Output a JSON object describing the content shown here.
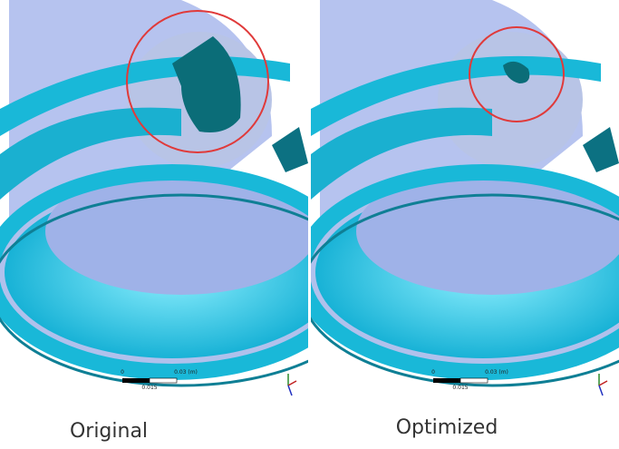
{
  "panels": [
    {
      "label": "Original",
      "scale": {
        "start": "0",
        "end": "0.03 (m)",
        "mid": "0.015"
      }
    },
    {
      "label": "Optimized",
      "scale": {
        "start": "0",
        "end": "0.03 (m)",
        "mid": "0.015"
      }
    }
  ]
}
